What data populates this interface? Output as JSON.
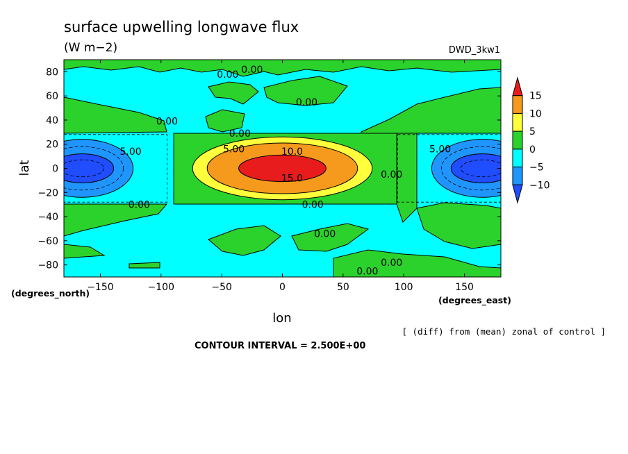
{
  "chart_data": {
    "type": "heatmap",
    "title": "surface upwelling longwave flux",
    "units": "(W m−2)",
    "model": "DWD_3kw1",
    "xlabel": "lon",
    "ylabel": "lat",
    "x_units": "(degrees_east)",
    "y_units": "(degrees_north)",
    "xlim": [
      -180,
      180
    ],
    "ylim": [
      -90,
      90
    ],
    "x_ticks": [
      -150,
      -100,
      -50,
      0,
      50,
      100,
      150
    ],
    "x_tick_labels": [
      "−150",
      "−100",
      "−50",
      "0",
      "50",
      "100",
      "150"
    ],
    "y_ticks": [
      80,
      60,
      40,
      20,
      0,
      -20,
      -40,
      -60,
      -80
    ],
    "y_tick_labels": [
      "80",
      "60",
      "40",
      "20",
      "0",
      "−20",
      "−40",
      "−60",
      "−80"
    ],
    "contour_interval_text": "CONTOUR INTERVAL = 2.500E+00",
    "note": "[ (diff) from (mean) zonal of control ]",
    "colorbar": {
      "levels": [
        "15",
        "10",
        "5",
        "0",
        "−5",
        "−10"
      ],
      "bins": [
        {
          "from": 15,
          "to": 17.5,
          "color": "#e81c1c"
        },
        {
          "from": 10,
          "to": 15,
          "color": "#f59a1c"
        },
        {
          "from": 5,
          "to": 10,
          "color": "#ffff3c"
        },
        {
          "from": 0,
          "to": 5,
          "color": "#2cd22c"
        },
        {
          "from": -5,
          "to": 0,
          "color": "#00ffff"
        },
        {
          "from": -10,
          "to": -5,
          "color": "#1f96ff"
        },
        {
          "from": -12.5,
          "to": -10,
          "color": "#1f4dff"
        }
      ]
    },
    "features": [
      {
        "kind": "warm_anomaly",
        "center_lon": 0,
        "center_lat": 0,
        "peak": 15
      },
      {
        "kind": "cold_anomaly",
        "center_lon": -165,
        "center_lat": 0,
        "peak": -10
      },
      {
        "kind": "cold_anomaly",
        "center_lon": 165,
        "center_lat": 0,
        "peak": -10
      }
    ],
    "contour_labels": [
      {
        "text": "0.00",
        "lon": -45,
        "lat": 78
      },
      {
        "text": "0.00",
        "lon": -25,
        "lat": 82
      },
      {
        "text": "0.00",
        "lon": 20,
        "lat": 55
      },
      {
        "text": "0.00",
        "lon": -95,
        "lat": 39
      },
      {
        "text": "0.00",
        "lon": -35,
        "lat": 29
      },
      {
        "text": "5.00",
        "lon": -40,
        "lat": 16
      },
      {
        "text": "10.0",
        "lon": 8,
        "lat": 14
      },
      {
        "text": "15.0",
        "lon": 8,
        "lat": -8
      },
      {
        "text": "5.00",
        "lon": -125,
        "lat": 14
      },
      {
        "text": "5.00",
        "lon": 130,
        "lat": 16
      },
      {
        "text": "0.00",
        "lon": 90,
        "lat": -5
      },
      {
        "text": "0.00",
        "lon": -118,
        "lat": -30
      },
      {
        "text": "0.00",
        "lon": 25,
        "lat": -30
      },
      {
        "text": "0.00",
        "lon": 35,
        "lat": -54
      },
      {
        "text": "0.00",
        "lon": 90,
        "lat": -78
      },
      {
        "text": "0.00",
        "lon": 70,
        "lat": -85
      }
    ]
  }
}
